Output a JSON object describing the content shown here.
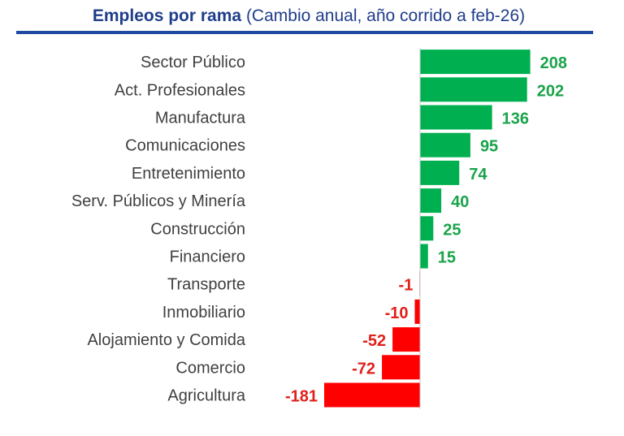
{
  "chart_data": {
    "type": "bar",
    "orientation": "horizontal",
    "title": "Empleos por rama",
    "subtitle": "(Cambio anual, año corrido a feb-26)",
    "categories": [
      "Sector Público",
      "Act. Profesionales",
      "Manufactura",
      "Comunicaciones",
      "Entretenimiento",
      "Serv. Públicos y Minería",
      "Construcción",
      "Financiero",
      "Transporte",
      "Inmobiliario",
      "Alojamiento y Comida",
      "Comercio",
      "Agricultura"
    ],
    "values": [
      208,
      202,
      136,
      95,
      74,
      40,
      25,
      15,
      -1,
      -10,
      -52,
      -72,
      -181
    ],
    "xlabel": "",
    "ylabel": "",
    "xlim": [
      -181,
      208
    ],
    "grid": false,
    "colors": {
      "positive": "#00b050",
      "negative": "#ff0000",
      "positive_label": "#1aa34a",
      "negative_label": "#e0201b",
      "title": "#1f3d8a"
    }
  }
}
